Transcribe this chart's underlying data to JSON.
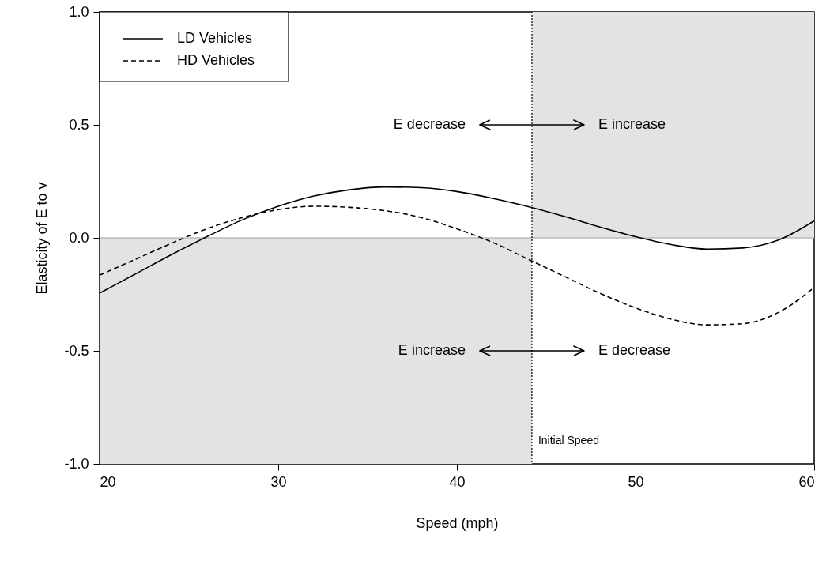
{
  "chart_data": {
    "type": "line",
    "xlabel": "Speed (mph)",
    "ylabel": "Elasticity of E to v",
    "xlim": [
      20,
      60
    ],
    "xticks": [
      20,
      30,
      40,
      50,
      60
    ],
    "ylim": [
      -1,
      1
    ],
    "yticks": [
      {
        "value": -1,
        "label": "-1.0"
      },
      {
        "value": -0.5,
        "label": "-0.5"
      },
      {
        "value": 0,
        "label": "0.0"
      },
      {
        "value": 0.5,
        "label": "0.5"
      },
      {
        "value": 1,
        "label": "1.0"
      }
    ],
    "legend": "top left",
    "series": [
      {
        "type": "area",
        "color": "#e3e3e3",
        "x": [
          20,
          44.2
        ],
        "values": [
          -1,
          -1
        ]
      },
      {
        "type": "area",
        "color": "#e3e3e3",
        "x": [
          44.2,
          60
        ],
        "values": [
          1,
          1
        ]
      },
      {
        "name": "LD Vehicles",
        "color": "#000000",
        "line_style": "solid",
        "x": [
          20,
          22,
          24,
          26,
          28,
          30,
          32,
          34,
          36,
          38,
          40,
          42,
          44,
          46,
          48,
          50,
          52,
          54,
          56,
          58,
          60
        ],
        "values": [
          -0.245,
          -0.16,
          -0.075,
          0.005,
          0.08,
          0.14,
          0.185,
          0.213,
          0.225,
          0.222,
          0.205,
          0.175,
          0.138,
          0.095,
          0.048,
          0.005,
          -0.03,
          -0.05,
          -0.045,
          -0.01,
          0.075
        ]
      },
      {
        "name": "HD Vehicles",
        "color": "#000000",
        "line_style": "dashed",
        "x": [
          20,
          22,
          24,
          26,
          28,
          30,
          32,
          34,
          36,
          38,
          40,
          42,
          44,
          46,
          48,
          50,
          52,
          54,
          56,
          58,
          60
        ],
        "values": [
          -0.165,
          -0.095,
          -0.025,
          0.04,
          0.09,
          0.125,
          0.14,
          0.135,
          0.12,
          0.09,
          0.04,
          -0.02,
          -0.095,
          -0.17,
          -0.245,
          -0.31,
          -0.36,
          -0.385,
          -0.38,
          -0.33,
          -0.22
        ]
      }
    ],
    "ref_lines": [
      {
        "axis": "y",
        "value": 0,
        "color": "#bbbbbb",
        "line_style": "solid"
      },
      {
        "axis": "x",
        "value": 44.2,
        "label": "Initial Speed",
        "color": "#000000",
        "line_style": "dotted"
      }
    ],
    "annotations": [
      "E decrease",
      "E increase",
      "E increase",
      "E decrease"
    ]
  }
}
